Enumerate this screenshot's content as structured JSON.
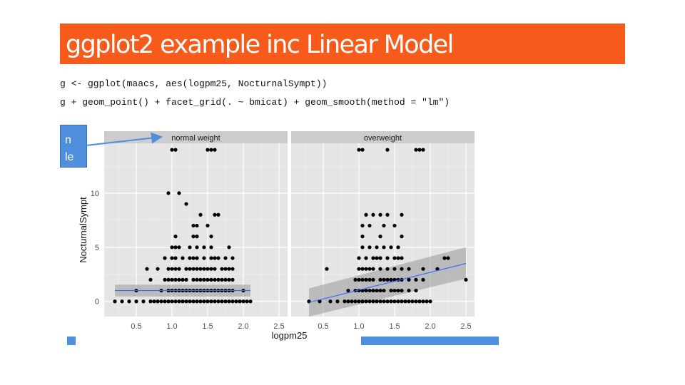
{
  "slide": {
    "title": "ggplot2 example inc Linear Model",
    "code": [
      "g <- ggplot(maacs, aes(logpm25, NocturnalSympt))",
      "g + geom_point() + facet_grid(. ~ bmicat) + geom_smooth(method = \"lm\")"
    ],
    "callout_text": "n\nle",
    "accent_color": "#f75b1b",
    "callout_color": "#4f8fdd"
  },
  "chart_data": {
    "type": "scatter",
    "facet_var": "bmicat",
    "panels": [
      {
        "name": "normal weight",
        "points": [
          [
            0.2,
            0
          ],
          [
            0.3,
            0
          ],
          [
            0.4,
            0
          ],
          [
            0.5,
            0
          ],
          [
            0.6,
            0
          ],
          [
            0.7,
            0
          ],
          [
            0.75,
            0
          ],
          [
            0.8,
            0
          ],
          [
            0.85,
            0
          ],
          [
            0.9,
            0
          ],
          [
            0.95,
            0
          ],
          [
            1.0,
            0
          ],
          [
            1.05,
            0
          ],
          [
            1.1,
            0
          ],
          [
            1.15,
            0
          ],
          [
            1.2,
            0
          ],
          [
            1.25,
            0
          ],
          [
            1.3,
            0
          ],
          [
            1.35,
            0
          ],
          [
            1.4,
            0
          ],
          [
            1.45,
            0
          ],
          [
            1.5,
            0
          ],
          [
            1.55,
            0
          ],
          [
            1.6,
            0
          ],
          [
            1.65,
            0
          ],
          [
            1.7,
            0
          ],
          [
            1.75,
            0
          ],
          [
            1.8,
            0
          ],
          [
            1.85,
            0
          ],
          [
            1.9,
            0
          ],
          [
            1.95,
            0
          ],
          [
            2.0,
            0
          ],
          [
            2.05,
            0
          ],
          [
            2.1,
            0
          ],
          [
            0.5,
            1
          ],
          [
            0.85,
            1
          ],
          [
            0.95,
            1
          ],
          [
            1.0,
            1
          ],
          [
            1.05,
            1
          ],
          [
            1.1,
            1
          ],
          [
            1.15,
            1
          ],
          [
            1.2,
            1
          ],
          [
            1.25,
            1
          ],
          [
            1.3,
            1
          ],
          [
            1.35,
            1
          ],
          [
            1.4,
            1
          ],
          [
            1.45,
            1
          ],
          [
            1.5,
            1
          ],
          [
            1.55,
            1
          ],
          [
            1.6,
            1
          ],
          [
            1.65,
            1
          ],
          [
            1.7,
            1
          ],
          [
            1.75,
            1
          ],
          [
            1.8,
            1
          ],
          [
            1.85,
            1
          ],
          [
            2.0,
            1
          ],
          [
            0.7,
            2
          ],
          [
            0.9,
            2
          ],
          [
            0.95,
            2
          ],
          [
            1.0,
            2
          ],
          [
            1.05,
            2
          ],
          [
            1.1,
            2
          ],
          [
            1.15,
            2
          ],
          [
            1.2,
            2
          ],
          [
            1.3,
            2
          ],
          [
            1.35,
            2
          ],
          [
            1.4,
            2
          ],
          [
            1.45,
            2
          ],
          [
            1.5,
            2
          ],
          [
            1.55,
            2
          ],
          [
            1.6,
            2
          ],
          [
            1.65,
            2
          ],
          [
            1.7,
            2
          ],
          [
            1.75,
            2
          ],
          [
            1.8,
            2
          ],
          [
            1.85,
            2
          ],
          [
            0.65,
            3
          ],
          [
            0.8,
            3
          ],
          [
            0.95,
            3
          ],
          [
            1.0,
            3
          ],
          [
            1.05,
            3
          ],
          [
            1.1,
            3
          ],
          [
            1.2,
            3
          ],
          [
            1.25,
            3
          ],
          [
            1.3,
            3
          ],
          [
            1.35,
            3
          ],
          [
            1.4,
            3
          ],
          [
            1.45,
            3
          ],
          [
            1.5,
            3
          ],
          [
            1.55,
            3
          ],
          [
            1.6,
            3
          ],
          [
            1.7,
            3
          ],
          [
            1.75,
            3
          ],
          [
            1.8,
            3
          ],
          [
            1.85,
            3
          ],
          [
            0.9,
            4
          ],
          [
            1.0,
            4
          ],
          [
            1.05,
            4
          ],
          [
            1.15,
            4
          ],
          [
            1.25,
            4
          ],
          [
            1.3,
            4
          ],
          [
            1.35,
            4
          ],
          [
            1.45,
            4
          ],
          [
            1.55,
            4
          ],
          [
            1.6,
            4
          ],
          [
            1.65,
            4
          ],
          [
            1.75,
            4
          ],
          [
            1.85,
            4
          ],
          [
            1.0,
            5
          ],
          [
            1.05,
            5
          ],
          [
            1.1,
            5
          ],
          [
            1.25,
            5
          ],
          [
            1.35,
            5
          ],
          [
            1.45,
            5
          ],
          [
            1.55,
            5
          ],
          [
            1.8,
            5
          ],
          [
            1.05,
            6
          ],
          [
            1.3,
            6
          ],
          [
            1.35,
            6
          ],
          [
            1.55,
            6
          ],
          [
            1.3,
            7
          ],
          [
            1.35,
            7
          ],
          [
            1.5,
            7
          ],
          [
            1.4,
            8
          ],
          [
            1.6,
            8
          ],
          [
            1.65,
            8
          ],
          [
            1.2,
            9
          ],
          [
            0.95,
            10
          ],
          [
            1.1,
            10
          ],
          [
            1.0,
            14
          ],
          [
            1.05,
            14
          ],
          [
            1.5,
            14
          ],
          [
            1.55,
            14
          ],
          [
            1.6,
            14
          ]
        ],
        "fit": {
          "x": [
            0.2,
            2.1
          ],
          "y": [
            1.0,
            1.0
          ],
          "ci_lower": [
            0.45,
            0.45
          ],
          "ci_upper": [
            1.55,
            1.55
          ]
        }
      },
      {
        "name": "overweight",
        "points": [
          [
            0.3,
            0
          ],
          [
            0.45,
            0
          ],
          [
            0.6,
            0
          ],
          [
            0.7,
            0
          ],
          [
            0.8,
            0
          ],
          [
            0.85,
            0
          ],
          [
            0.9,
            0
          ],
          [
            0.95,
            0
          ],
          [
            1.0,
            0
          ],
          [
            1.05,
            0
          ],
          [
            1.1,
            0
          ],
          [
            1.15,
            0
          ],
          [
            1.2,
            0
          ],
          [
            1.25,
            0
          ],
          [
            1.3,
            0
          ],
          [
            1.35,
            0
          ],
          [
            1.4,
            0
          ],
          [
            1.45,
            0
          ],
          [
            1.5,
            0
          ],
          [
            1.55,
            0
          ],
          [
            1.6,
            0
          ],
          [
            1.65,
            0
          ],
          [
            1.7,
            0
          ],
          [
            1.75,
            0
          ],
          [
            1.8,
            0
          ],
          [
            1.85,
            0
          ],
          [
            1.9,
            0
          ],
          [
            1.95,
            0
          ],
          [
            2.0,
            0
          ],
          [
            0.85,
            1
          ],
          [
            0.95,
            1
          ],
          [
            1.0,
            1
          ],
          [
            1.05,
            1
          ],
          [
            1.1,
            1
          ],
          [
            1.15,
            1
          ],
          [
            1.2,
            1
          ],
          [
            1.25,
            1
          ],
          [
            1.3,
            1
          ],
          [
            1.35,
            1
          ],
          [
            1.45,
            1
          ],
          [
            1.5,
            1
          ],
          [
            1.55,
            1
          ],
          [
            1.6,
            1
          ],
          [
            1.7,
            1
          ],
          [
            1.8,
            1
          ],
          [
            0.95,
            2
          ],
          [
            1.0,
            2
          ],
          [
            1.05,
            2
          ],
          [
            1.1,
            2
          ],
          [
            1.15,
            2
          ],
          [
            1.2,
            2
          ],
          [
            1.3,
            2
          ],
          [
            1.35,
            2
          ],
          [
            1.4,
            2
          ],
          [
            1.45,
            2
          ],
          [
            1.5,
            2
          ],
          [
            1.55,
            2
          ],
          [
            1.6,
            2
          ],
          [
            1.7,
            2
          ],
          [
            1.8,
            2
          ],
          [
            1.9,
            2
          ],
          [
            2.5,
            2
          ],
          [
            1.0,
            3
          ],
          [
            1.05,
            3
          ],
          [
            1.1,
            3
          ],
          [
            1.15,
            3
          ],
          [
            1.2,
            3
          ],
          [
            1.3,
            3
          ],
          [
            1.4,
            3
          ],
          [
            1.5,
            3
          ],
          [
            1.6,
            3
          ],
          [
            1.7,
            3
          ],
          [
            1.9,
            3
          ],
          [
            2.1,
            3
          ],
          [
            0.55,
            3
          ],
          [
            1.0,
            4
          ],
          [
            1.1,
            4
          ],
          [
            1.2,
            4
          ],
          [
            1.25,
            4
          ],
          [
            1.3,
            4
          ],
          [
            1.4,
            4
          ],
          [
            1.5,
            4
          ],
          [
            1.55,
            4
          ],
          [
            1.6,
            4
          ],
          [
            2.2,
            4
          ],
          [
            2.25,
            4
          ],
          [
            1.05,
            5
          ],
          [
            1.15,
            5
          ],
          [
            1.25,
            5
          ],
          [
            1.35,
            5
          ],
          [
            1.45,
            5
          ],
          [
            1.55,
            5
          ],
          [
            1.05,
            6
          ],
          [
            1.3,
            6
          ],
          [
            1.6,
            6
          ],
          [
            1.05,
            7
          ],
          [
            1.15,
            7
          ],
          [
            1.35,
            7
          ],
          [
            1.5,
            7
          ],
          [
            1.1,
            8
          ],
          [
            1.2,
            8
          ],
          [
            1.3,
            8
          ],
          [
            1.4,
            8
          ],
          [
            1.6,
            8
          ],
          [
            1.0,
            14
          ],
          [
            1.05,
            14
          ],
          [
            1.4,
            14
          ],
          [
            1.8,
            14
          ],
          [
            1.85,
            14
          ],
          [
            1.9,
            14
          ]
        ],
        "fit": {
          "x": [
            0.3,
            2.5
          ],
          "y": [
            -0.1,
            3.5
          ],
          "ci_lower": [
            -1.4,
            2.1
          ],
          "ci_upper": [
            1.2,
            5.0
          ]
        }
      }
    ],
    "xlabel": "logpm25",
    "ylabel": "NocturnalSympt",
    "xlim": [
      0.05,
      2.62
    ],
    "ylim": [
      -1.4,
      14.6
    ],
    "xticks": [
      0.5,
      1.0,
      1.5,
      2.0,
      2.5
    ],
    "yticks": [
      0,
      5,
      10
    ],
    "xtick_labels": [
      "0.5",
      "1.0",
      "1.5",
      "2.0",
      "2.5"
    ],
    "ytick_labels": [
      "0",
      "5",
      "10"
    ],
    "grid": true,
    "panel_background": "#e5e5e5",
    "point_color": "#000000",
    "line_color": "#3366ff",
    "ribbon_color": "#999999"
  }
}
